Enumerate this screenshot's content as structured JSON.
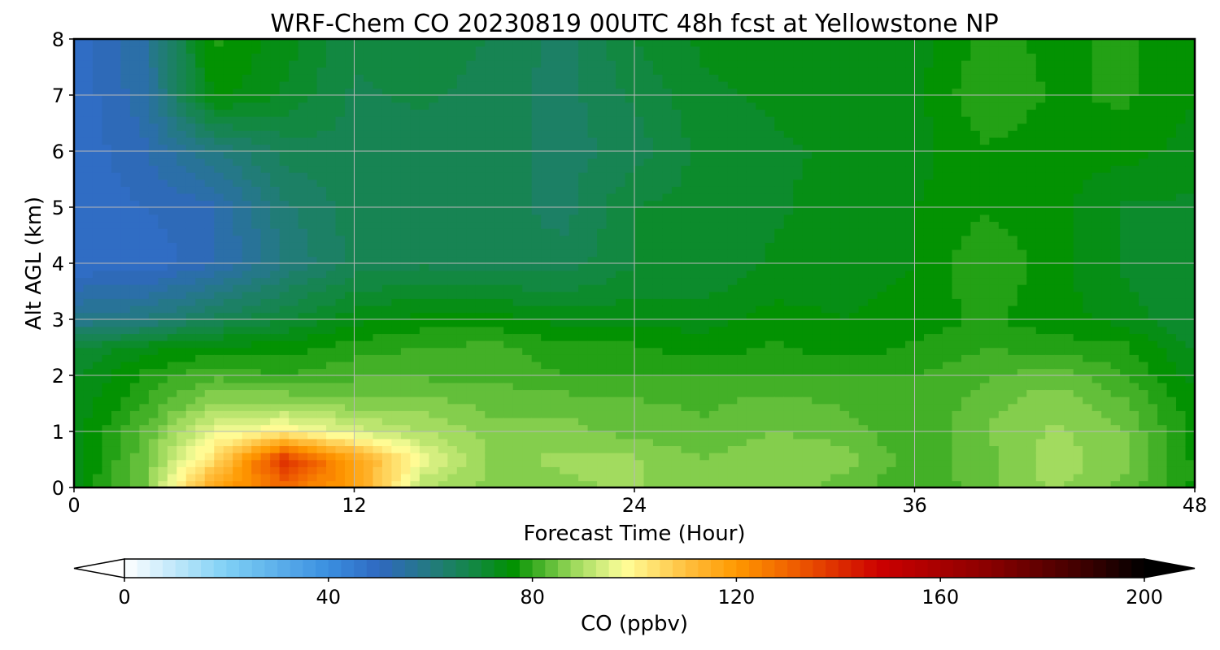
{
  "chart_data": {
    "type": "heatmap",
    "subtype": "filled-contour",
    "title": "WRF-Chem CO  20230819 00UTC 48h fcst at Yellowstone NP",
    "xlabel": "Forecast Time (Hour)",
    "ylabel": "Alt AGL (km)",
    "xlim": [
      0,
      48
    ],
    "ylim": [
      0,
      8
    ],
    "xticks": [
      0,
      12,
      24,
      36,
      48
    ],
    "yticks": [
      0,
      1,
      2,
      3,
      4,
      5,
      6,
      7,
      8
    ],
    "grid": true,
    "colorbar": {
      "label": "CO  (ppbv)",
      "orientation": "horizontal",
      "placement": "bottom",
      "min": 0,
      "max": 200,
      "ticks": [
        0,
        40,
        80,
        120,
        160,
        200
      ],
      "extend": "both",
      "colors": [
        {
          "v": 0,
          "c": "#ffffff"
        },
        {
          "v": 20,
          "c": "#7fd0f5"
        },
        {
          "v": 40,
          "c": "#3a8fe0"
        },
        {
          "v": 50,
          "c": "#2f68c0"
        },
        {
          "v": 60,
          "c": "#237a80"
        },
        {
          "v": 70,
          "c": "#0f8a38"
        },
        {
          "v": 76,
          "c": "#009000"
        },
        {
          "v": 88,
          "c": "#9ad85a"
        },
        {
          "v": 98,
          "c": "#ffff9a"
        },
        {
          "v": 110,
          "c": "#ffc040"
        },
        {
          "v": 120,
          "c": "#ff9900"
        },
        {
          "v": 132,
          "c": "#ee5a00"
        },
        {
          "v": 148,
          "c": "#cc0000"
        },
        {
          "v": 170,
          "c": "#880000"
        },
        {
          "v": 190,
          "c": "#350000"
        },
        {
          "v": 200,
          "c": "#000000"
        }
      ]
    },
    "times": [
      0,
      3,
      6,
      9,
      12,
      15,
      18,
      21,
      24,
      27,
      30,
      33,
      36,
      39,
      42,
      45,
      48
    ],
    "altitudes": [
      0,
      0.5,
      1,
      1.5,
      2,
      2.5,
      3,
      4,
      5,
      6,
      7,
      8
    ],
    "values": [
      [
        74,
        85,
        118,
        128,
        118,
        90,
        86,
        87,
        88,
        85,
        86,
        84,
        80,
        84,
        88,
        84,
        77
      ],
      [
        74,
        84,
        104,
        140,
        118,
        96,
        87,
        88,
        88,
        85,
        87,
        86,
        81,
        84,
        89,
        86,
        77
      ],
      [
        74,
        83,
        96,
        100,
        94,
        90,
        86,
        86,
        84,
        83,
        85,
        84,
        80,
        85,
        88,
        85,
        76
      ],
      [
        73,
        80,
        88,
        88,
        86,
        86,
        84,
        84,
        83,
        82,
        84,
        82,
        80,
        84,
        87,
        83,
        76
      ],
      [
        72,
        78,
        82,
        80,
        82,
        82,
        82,
        80,
        80,
        80,
        80,
        80,
        80,
        82,
        84,
        80,
        74
      ],
      [
        70,
        74,
        76,
        76,
        79,
        80,
        81,
        78,
        78,
        76,
        78,
        76,
        78,
        80,
        79,
        78,
        72
      ],
      [
        58,
        60,
        66,
        70,
        74,
        76,
        76,
        74,
        74,
        74,
        76,
        75,
        76,
        78,
        76,
        74,
        70
      ],
      [
        48,
        48,
        52,
        60,
        66,
        67,
        66,
        66,
        70,
        70,
        73,
        74,
        75,
        80,
        76,
        72,
        70
      ],
      [
        48,
        50,
        52,
        62,
        66,
        66,
        66,
        64,
        70,
        71,
        72,
        74,
        75,
        77,
        76,
        72,
        72
      ],
      [
        48,
        52,
        60,
        66,
        67,
        66,
        66,
        64,
        66,
        71,
        72,
        73,
        74,
        77,
        76,
        76,
        74
      ],
      [
        48,
        54,
        76,
        72,
        67,
        68,
        66,
        64,
        68,
        72,
        73,
        74,
        74,
        80,
        77,
        78,
        75
      ],
      [
        48,
        55,
        78,
        74,
        68,
        70,
        67,
        64,
        70,
        73,
        74,
        74,
        74,
        78,
        77,
        78,
        76
      ]
    ]
  }
}
